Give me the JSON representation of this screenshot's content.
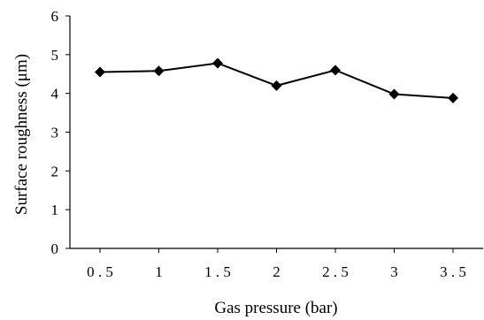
{
  "chart_data": {
    "type": "line",
    "title": "",
    "xlabel": "Gas pressure (bar)",
    "ylabel": "Surface roughness (μm)",
    "categories": [
      "0 . 5",
      "1",
      "1 . 5",
      "2",
      "2 . 5",
      "3",
      "3 . 5"
    ],
    "x": [
      0.5,
      1,
      1.5,
      2,
      2.5,
      3,
      3.5
    ],
    "series": [
      {
        "values": [
          4.55,
          4.58,
          4.78,
          4.2,
          4.6,
          3.98,
          3.88
        ]
      }
    ],
    "ylim": [
      0,
      6
    ],
    "yticks": [
      "0",
      "1",
      "2",
      "3",
      "4",
      "5",
      "6"
    ],
    "grid": false,
    "legend": "none",
    "colors": {
      "line": "#000000",
      "marker": "#000000",
      "axis": "#000000"
    },
    "marker": "diamond"
  }
}
